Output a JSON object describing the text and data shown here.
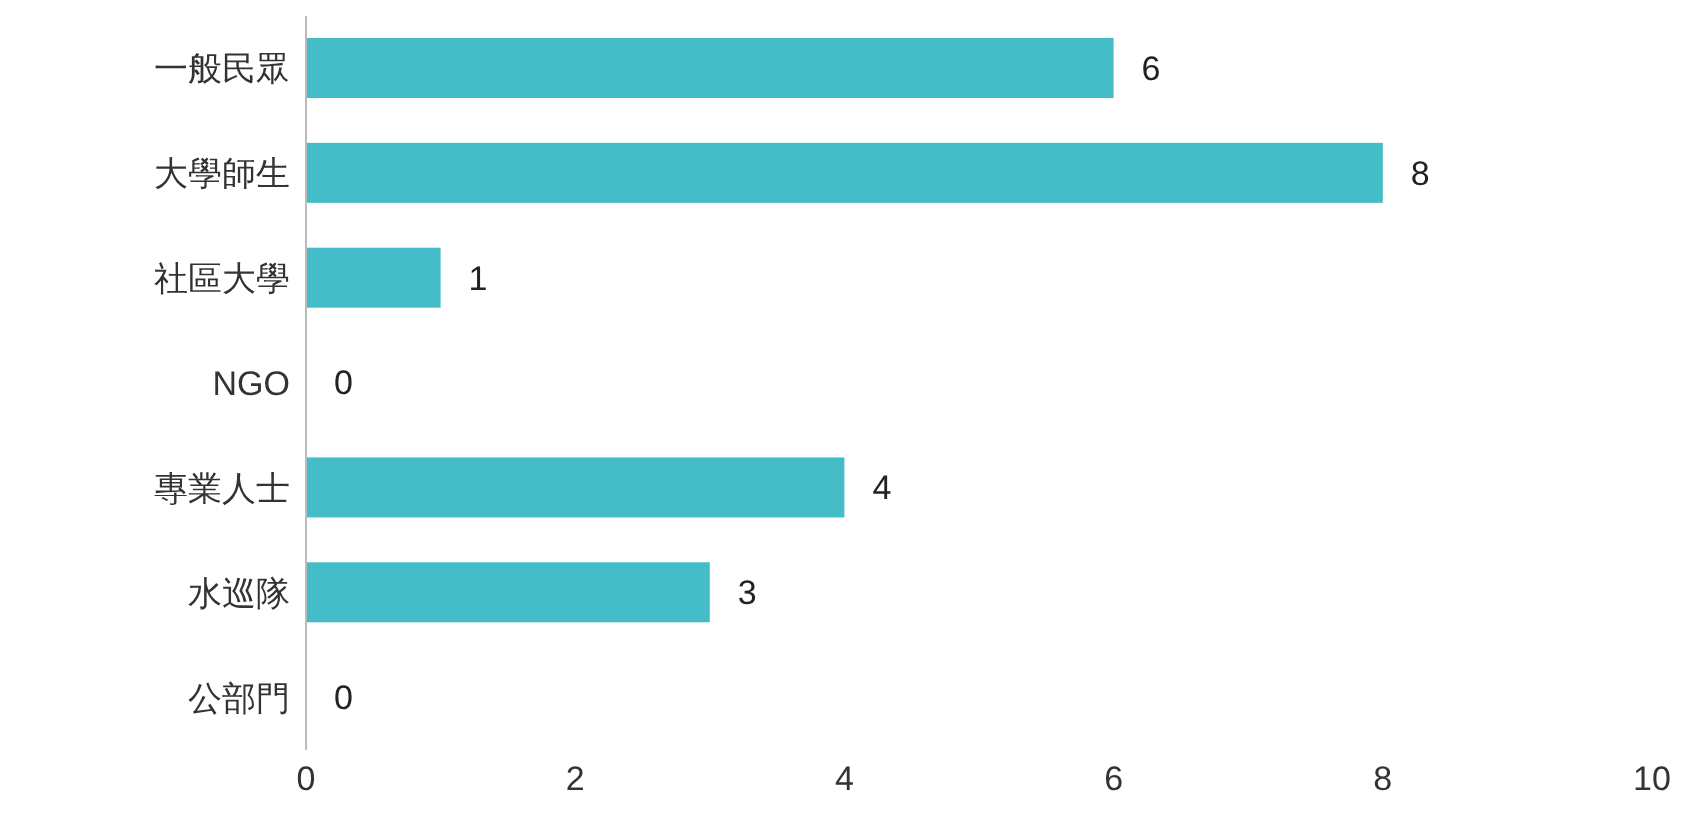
{
  "chart_data": {
    "type": "bar",
    "orientation": "horizontal",
    "categories": [
      "一般民眾",
      "大學師生",
      "社區大學",
      "NGO",
      "專業人士",
      "水巡隊",
      "公部門"
    ],
    "values": [
      6,
      8,
      1,
      0,
      4,
      3,
      0
    ],
    "color": "#45bdc8",
    "xlim": [
      0,
      10
    ],
    "xticks": [
      0,
      2,
      4,
      6,
      8,
      10
    ],
    "data_labels": true,
    "grid": false,
    "legend": false
  }
}
